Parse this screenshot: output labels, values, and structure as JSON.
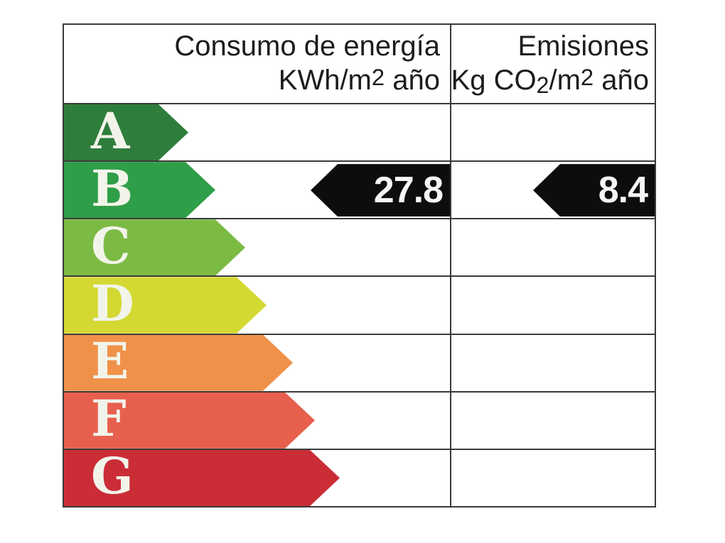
{
  "certificate": {
    "header": {
      "energy_title": "Consumo de energía",
      "energy_unit_prefix": "KWh/m",
      "energy_unit_sup": "2",
      "energy_unit_suffix": " año",
      "emissions_title": "Emisiones",
      "emissions_unit_prefix": "Kg CO",
      "emissions_unit_sub": "2",
      "emissions_unit_mid": "/m",
      "emissions_unit_sup": "2",
      "emissions_unit_suffix": " año"
    },
    "bands": [
      {
        "letter": "A",
        "color": "#2e7d3c"
      },
      {
        "letter": "B",
        "color": "#2f9e48"
      },
      {
        "letter": "C",
        "color": "#7bbb44"
      },
      {
        "letter": "D",
        "color": "#d4d832"
      },
      {
        "letter": "E",
        "color": "#f0914a"
      },
      {
        "letter": "F",
        "color": "#e7604d"
      },
      {
        "letter": "G",
        "color": "#cb2d37"
      }
    ],
    "rated_band": "B",
    "values": {
      "energy": "27.8",
      "emissions": "8.4"
    },
    "colors": {
      "value_arrow": "#0d0d0d",
      "value_text": "#f6f6f6",
      "letter_text": "#f2f4ea",
      "border": "#3a3a3a",
      "header_text": "#1c1c1c"
    }
  },
  "chart_data": {
    "type": "bar",
    "categories": [
      "A",
      "B",
      "C",
      "D",
      "E",
      "F",
      "G"
    ],
    "band_colors": [
      "#2e7d3c",
      "#2f9e48",
      "#7bbb44",
      "#d4d832",
      "#f0914a",
      "#e7604d",
      "#cb2d37"
    ],
    "series": [
      {
        "name": "Consumo de energía KWh/m2 año",
        "rated_category": "B",
        "value": 27.8
      },
      {
        "name": "Emisiones Kg CO2/m2 año",
        "rated_category": "B",
        "value": 8.4
      }
    ],
    "legend_position": "none",
    "grid": false
  }
}
